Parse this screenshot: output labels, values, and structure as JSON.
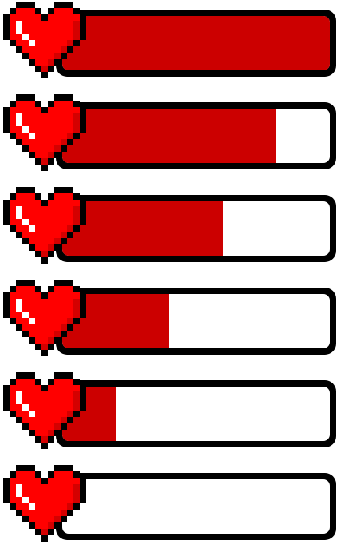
{
  "colors": {
    "fill": "#cc0000",
    "heart": "#ff0000",
    "heart_dark": "#d40000",
    "heart_shine": "#ffffff",
    "outline": "#000000",
    "empty": "#ffffff"
  },
  "health_bars": [
    {
      "level": 1.0
    },
    {
      "level": 0.8
    },
    {
      "level": 0.6
    },
    {
      "level": 0.4
    },
    {
      "level": 0.2
    },
    {
      "level": 0.0
    }
  ]
}
